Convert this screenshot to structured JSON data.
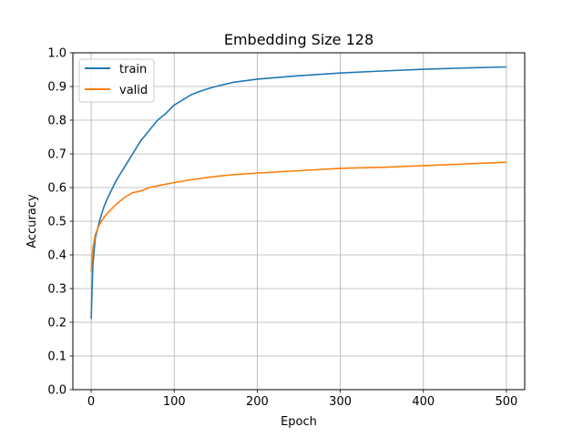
{
  "chart_data": {
    "type": "line",
    "title": "Embedding Size 128",
    "xlabel": "Epoch",
    "ylabel": "Accuracy",
    "xlim": [
      -22,
      522
    ],
    "ylim": [
      0.0,
      1.0
    ],
    "xticks": [
      0,
      100,
      200,
      300,
      400,
      500
    ],
    "yticks": [
      0.0,
      0.1,
      0.2,
      0.3,
      0.4,
      0.5,
      0.6,
      0.7,
      0.8,
      0.9,
      1.0
    ],
    "xtick_labels": [
      "0",
      "100",
      "200",
      "300",
      "400",
      "500"
    ],
    "ytick_labels": [
      "0.0",
      "0.1",
      "0.2",
      "0.3",
      "0.4",
      "0.5",
      "0.6",
      "0.7",
      "0.8",
      "0.9",
      "1.0"
    ],
    "grid": true,
    "legend_position": "top-left",
    "series": [
      {
        "name": "train",
        "color": "#1f77b4",
        "x": [
          0,
          2,
          5,
          10,
          15,
          20,
          30,
          40,
          50,
          60,
          70,
          80,
          90,
          100,
          110,
          120,
          130,
          140,
          150,
          170,
          200,
          250,
          300,
          350,
          400,
          450,
          500
        ],
        "y": [
          0.21,
          0.37,
          0.45,
          0.5,
          0.54,
          0.57,
          0.62,
          0.66,
          0.7,
          0.74,
          0.77,
          0.8,
          0.82,
          0.845,
          0.86,
          0.875,
          0.885,
          0.893,
          0.9,
          0.912,
          0.922,
          0.932,
          0.94,
          0.946,
          0.951,
          0.955,
          0.958
        ]
      },
      {
        "name": "valid",
        "color": "#ff7f0e",
        "x": [
          0,
          2,
          5,
          10,
          15,
          20,
          30,
          40,
          50,
          60,
          70,
          80,
          90,
          100,
          120,
          140,
          150,
          170,
          200,
          250,
          300,
          350,
          400,
          450,
          500
        ],
        "y": [
          0.35,
          0.42,
          0.46,
          0.49,
          0.51,
          0.525,
          0.55,
          0.57,
          0.585,
          0.59,
          0.6,
          0.605,
          0.61,
          0.615,
          0.623,
          0.63,
          0.633,
          0.638,
          0.643,
          0.65,
          0.657,
          0.66,
          0.665,
          0.67,
          0.675
        ]
      }
    ]
  }
}
